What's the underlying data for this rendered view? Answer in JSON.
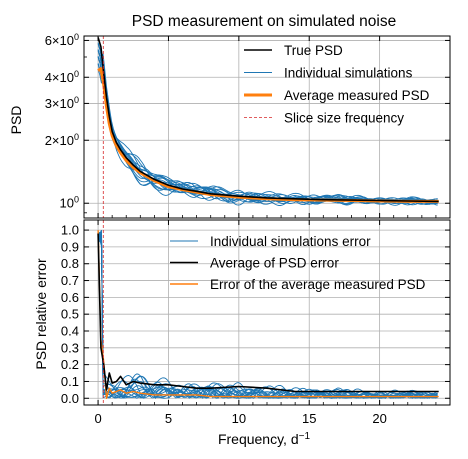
{
  "title": "PSD measurement on simulated noise",
  "colors": {
    "true_psd": "#000000",
    "individual": "#1f77b4",
    "average": "#ff7f0e",
    "slice": "#d62728",
    "grid": "#b0b0b0"
  },
  "chart_data": [
    {
      "type": "line",
      "panel": "top",
      "ylabel": "PSD",
      "yscale": "log",
      "ylim": [
        0.85,
        6.3
      ],
      "xlim": [
        -1,
        25
      ],
      "grid": true,
      "legend_position": "top-right",
      "y_ticks": [
        {
          "v": 1,
          "label": "10^0",
          "mant": "",
          "base": "10",
          "exp": "0"
        },
        {
          "v": 2,
          "label": "2x10^0",
          "mant": "2×",
          "base": "10",
          "exp": "0"
        },
        {
          "v": 3,
          "label": "3x10^0",
          "mant": "3×",
          "base": "10",
          "exp": "0"
        },
        {
          "v": 4,
          "label": "4x10^0",
          "mant": "4×",
          "base": "10",
          "exp": "0"
        },
        {
          "v": 6,
          "label": "6x10^0",
          "mant": "6×",
          "base": "10",
          "exp": "0"
        }
      ],
      "slice_frequency": 0.37,
      "series": [
        {
          "name": "True PSD",
          "color": "#000000",
          "width": 1.6,
          "x": [
            0,
            0.2,
            0.4,
            0.6,
            0.8,
            1,
            1.3,
            1.6,
            2,
            2.5,
            3,
            4,
            5,
            6,
            7,
            8,
            10,
            12,
            14,
            16,
            18,
            20,
            22,
            24.2
          ],
          "y": [
            6.2,
            5.6,
            4.2,
            3.2,
            2.6,
            2.2,
            1.95,
            1.8,
            1.65,
            1.52,
            1.42,
            1.3,
            1.22,
            1.17,
            1.14,
            1.11,
            1.08,
            1.06,
            1.05,
            1.04,
            1.035,
            1.03,
            1.025,
            1.02
          ]
        },
        {
          "name": "Individual simulations",
          "color": "#1f77b4",
          "width": 0.9,
          "legend_only": true,
          "x": [],
          "y": []
        },
        {
          "name": "Average measured PSD",
          "color": "#ff7f0e",
          "width": 3,
          "x": [
            0,
            0.2,
            0.4,
            0.6,
            0.8,
            1,
            1.3,
            1.6,
            2,
            2.5,
            3,
            4,
            5,
            6,
            7,
            8,
            10,
            12,
            14,
            16,
            18,
            20,
            22,
            24.2
          ],
          "y": [
            4.3,
            4.4,
            3.7,
            2.9,
            2.4,
            2.1,
            1.88,
            1.74,
            1.6,
            1.48,
            1.4,
            1.28,
            1.2,
            1.16,
            1.13,
            1.1,
            1.07,
            1.05,
            1.04,
            1.035,
            1.03,
            1.025,
            1.02,
            1.02
          ]
        },
        {
          "name": "Slice size frequency",
          "color": "#d62728",
          "width": 0.8,
          "dashed": true,
          "legend_only": true,
          "x": [],
          "y": []
        }
      ]
    },
    {
      "type": "line",
      "panel": "bottom",
      "ylabel": "PSD relative error",
      "xlabel": "Frequency, d⁻¹",
      "xlim": [
        -1,
        25
      ],
      "ylim": [
        -0.04,
        1.06
      ],
      "grid": true,
      "legend_position": "top-right",
      "x_ticks": [
        0,
        5,
        10,
        15,
        20
      ],
      "y_ticks": [
        0.0,
        0.1,
        0.2,
        0.3,
        0.4,
        0.5,
        0.6,
        0.7,
        0.8,
        0.9,
        1.0
      ],
      "y_tick_labels": [
        "0.0",
        "0.1",
        "0.2",
        "0.3",
        "0.4",
        "0.5",
        "0.6",
        "0.7",
        "0.8",
        "0.9",
        "1.0"
      ],
      "slice_frequency": 0.37,
      "series": [
        {
          "name": "Individual simulations error",
          "color": "#1f77b4",
          "width": 0.9,
          "legend_only": true,
          "x": [],
          "y": []
        },
        {
          "name": "Average of PSD error",
          "color": "#000000",
          "width": 1.6,
          "x": [
            0,
            0.2,
            0.4,
            0.6,
            0.8,
            1,
            1.3,
            1.6,
            2,
            2.5,
            3,
            4,
            5,
            6,
            7,
            8,
            10,
            12,
            14,
            16,
            18,
            20,
            22,
            24.2
          ],
          "y": [
            0.98,
            0.3,
            0.2,
            0.05,
            0.15,
            0.09,
            0.1,
            0.13,
            0.08,
            0.1,
            0.09,
            0.08,
            0.08,
            0.07,
            0.06,
            0.06,
            0.07,
            0.06,
            0.04,
            0.04,
            0.04,
            0.04,
            0.04,
            0.04
          ]
        },
        {
          "name": "Error of the average measured PSD",
          "color": "#ff7f0e",
          "width": 1.4,
          "x": [
            0,
            0.2,
            0.4,
            0.6,
            0.8,
            1,
            1.3,
            1.6,
            2,
            2.5,
            3,
            4,
            5,
            6,
            7,
            8,
            10,
            12,
            14,
            16,
            18,
            20,
            22,
            24.2
          ],
          "y": [
            1.0,
            0.35,
            0.22,
            0.0,
            0.06,
            0.03,
            0.04,
            0.05,
            0.03,
            0.04,
            0.03,
            0.02,
            0.02,
            0.02,
            0.02,
            0.01,
            0.01,
            0.01,
            0.01,
            0.01,
            0.01,
            0.01,
            0.01,
            0.01
          ]
        }
      ]
    }
  ]
}
